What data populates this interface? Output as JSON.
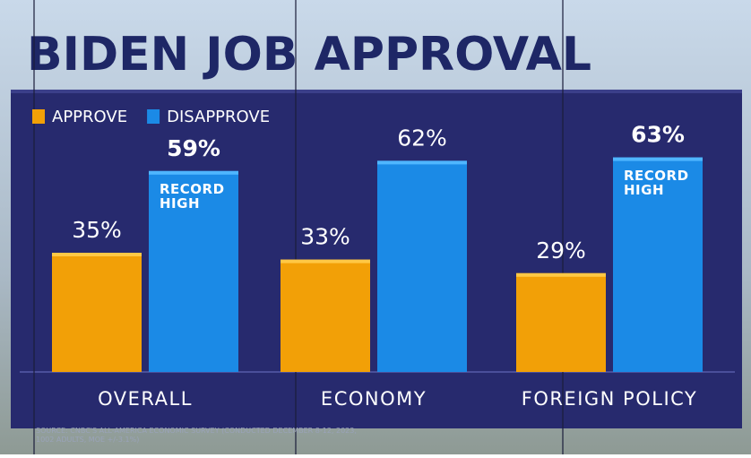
{
  "chart_data": {
    "type": "bar",
    "title": "BIDEN JOB APPROVAL",
    "categories": [
      "OVERALL",
      "ECONOMY",
      "FOREIGN POLICY"
    ],
    "series": [
      {
        "name": "APPROVE",
        "color": "#f2a007",
        "values": [
          35,
          33,
          29
        ],
        "value_labels": [
          "35%",
          "33%",
          "29%"
        ]
      },
      {
        "name": "DISAPPROVE",
        "color": "#1b8ae6",
        "values": [
          59,
          62,
          63
        ],
        "value_labels": [
          "59%",
          "62%",
          "63%"
        ]
      }
    ],
    "annotations": [
      {
        "category": "OVERALL",
        "series": "DISAPPROVE",
        "text": "RECORD HIGH"
      },
      {
        "category": "FOREIGN POLICY",
        "series": "DISAPPROVE",
        "text": "RECORD HIGH"
      }
    ],
    "source": "SOURCE: CNBC'S ALL-AMERICA ECONOMIC SURVEY (CONDUCTED DECEMBER 8-12, 2023, 1002 ADULTS, MOE +/-3.1%)"
  }
}
